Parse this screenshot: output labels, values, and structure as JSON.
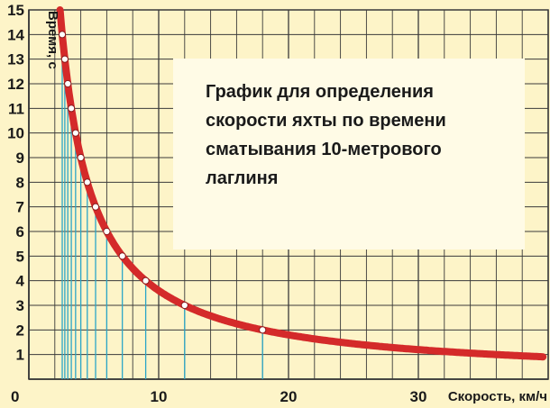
{
  "chart_data": {
    "type": "line",
    "title_lines": [
      "График для определения",
      "скорости яхты по времени",
      "сматывания 10-метрового",
      "лаглиня"
    ],
    "xlabel": "Скорость, км/ч",
    "ylabel": "Время, с",
    "xlim": [
      0,
      40
    ],
    "ylim": [
      0,
      15
    ],
    "x_ticks": [
      "10",
      "20",
      "30"
    ],
    "origin_label": "0",
    "y_ticks": [
      "1",
      "2",
      "3",
      "4",
      "5",
      "6",
      "7",
      "8",
      "9",
      "10",
      "11",
      "12",
      "13",
      "14",
      "15"
    ],
    "grid": true,
    "series": [
      {
        "formula": "t = 36 / v",
        "x_range": [
          2.4,
          39.6
        ],
        "color": "#d42a2a"
      }
    ],
    "points": [
      {
        "x": 2.57,
        "y": 14
      },
      {
        "x": 2.77,
        "y": 13
      },
      {
        "x": 3.0,
        "y": 12
      },
      {
        "x": 3.27,
        "y": 11
      },
      {
        "x": 3.6,
        "y": 10
      },
      {
        "x": 4.0,
        "y": 9
      },
      {
        "x": 4.5,
        "y": 8
      },
      {
        "x": 5.14,
        "y": 7
      },
      {
        "x": 6.0,
        "y": 6
      },
      {
        "x": 7.2,
        "y": 5
      },
      {
        "x": 9.0,
        "y": 4
      },
      {
        "x": 12.0,
        "y": 3
      },
      {
        "x": 18.0,
        "y": 2
      }
    ],
    "colors": {
      "background": "#fdf4c8",
      "grid": "#3a3a3a",
      "curve": "#d42a2a",
      "guide_lines": "#2aa6c8",
      "title_box": "#fffbe6"
    }
  }
}
